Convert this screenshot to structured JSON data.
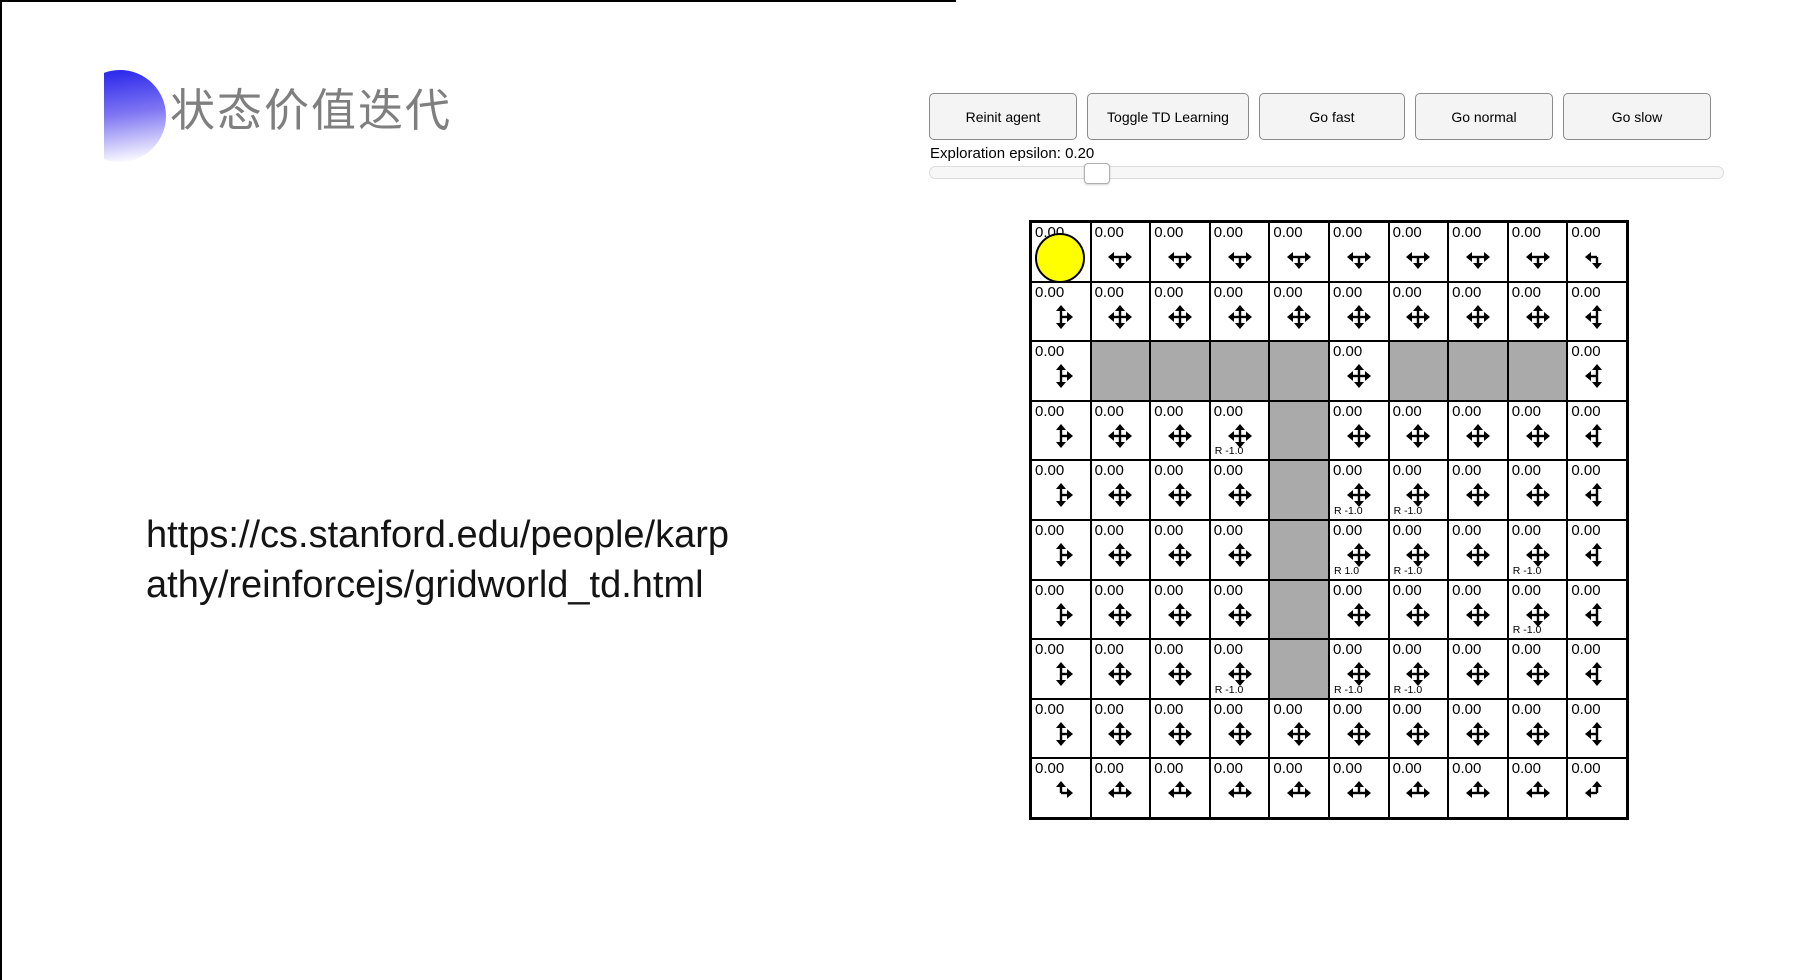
{
  "slide": {
    "title": "状态价值迭代",
    "title_color": "#7f7f7f",
    "accent_color": "#2f2ceb",
    "url": {
      "line1": "https://cs.stanford.edu/people/karp",
      "line2": "athy/reinforcejs/gridworld_td.html"
    }
  },
  "demo": {
    "buttons": [
      {
        "label": "Reinit agent"
      },
      {
        "label": "Toggle TD Learning"
      },
      {
        "label": "Go fast"
      },
      {
        "label": "Go normal"
      },
      {
        "label": "Go slow"
      }
    ],
    "epsilon": {
      "label": "Exploration epsilon: 0.20",
      "value": 0.2
    },
    "slider": {
      "percent": 20
    },
    "grid": {
      "rows_count": 10,
      "cols_count": 10,
      "wall_color": "#aaaaaa",
      "agent_color": "#ffff00",
      "agent_position": {
        "row": 0,
        "col": 0
      },
      "rows": [
        [
          {
            "v": "0.00",
            "a": true
          },
          {
            "v": "0.00",
            "d": "lrd"
          },
          {
            "v": "0.00",
            "d": "lrd"
          },
          {
            "v": "0.00",
            "d": "lrd"
          },
          {
            "v": "0.00",
            "d": "lrd"
          },
          {
            "v": "0.00",
            "d": "lrd"
          },
          {
            "v": "0.00",
            "d": "lrd"
          },
          {
            "v": "0.00",
            "d": "lrd"
          },
          {
            "v": "0.00",
            "d": "lrd"
          },
          {
            "v": "0.00",
            "d": "ld"
          }
        ],
        [
          {
            "v": "0.00",
            "d": "udr"
          },
          {
            "v": "0.00",
            "d": "udlr"
          },
          {
            "v": "0.00",
            "d": "udlr"
          },
          {
            "v": "0.00",
            "d": "udlr"
          },
          {
            "v": "0.00",
            "d": "udlr"
          },
          {
            "v": "0.00",
            "d": "udlr"
          },
          {
            "v": "0.00",
            "d": "udlr"
          },
          {
            "v": "0.00",
            "d": "udlr"
          },
          {
            "v": "0.00",
            "d": "udlr"
          },
          {
            "v": "0.00",
            "d": "udl"
          }
        ],
        [
          {
            "v": "0.00",
            "d": "udr"
          },
          {
            "w": true
          },
          {
            "w": true
          },
          {
            "w": true
          },
          {
            "w": true
          },
          {
            "v": "0.00",
            "d": "udlr"
          },
          {
            "w": true
          },
          {
            "w": true
          },
          {
            "w": true
          },
          {
            "v": "0.00",
            "d": "udl"
          }
        ],
        [
          {
            "v": "0.00",
            "d": "udr"
          },
          {
            "v": "0.00",
            "d": "udlr"
          },
          {
            "v": "0.00",
            "d": "udlr"
          },
          {
            "v": "0.00",
            "d": "udlr",
            "r": "R -1.0"
          },
          {
            "w": true
          },
          {
            "v": "0.00",
            "d": "udlr"
          },
          {
            "v": "0.00",
            "d": "udlr"
          },
          {
            "v": "0.00",
            "d": "udlr"
          },
          {
            "v": "0.00",
            "d": "udlr"
          },
          {
            "v": "0.00",
            "d": "udl"
          }
        ],
        [
          {
            "v": "0.00",
            "d": "udr"
          },
          {
            "v": "0.00",
            "d": "udlr"
          },
          {
            "v": "0.00",
            "d": "udlr"
          },
          {
            "v": "0.00",
            "d": "udlr"
          },
          {
            "w": true
          },
          {
            "v": "0.00",
            "d": "udlr",
            "r": "R -1.0"
          },
          {
            "v": "0.00",
            "d": "udlr",
            "r": "R -1.0"
          },
          {
            "v": "0.00",
            "d": "udlr"
          },
          {
            "v": "0.00",
            "d": "udlr"
          },
          {
            "v": "0.00",
            "d": "udl"
          }
        ],
        [
          {
            "v": "0.00",
            "d": "udr"
          },
          {
            "v": "0.00",
            "d": "udlr"
          },
          {
            "v": "0.00",
            "d": "udlr"
          },
          {
            "v": "0.00",
            "d": "udlr"
          },
          {
            "w": true
          },
          {
            "v": "0.00",
            "d": "udlr",
            "r": "R 1.0"
          },
          {
            "v": "0.00",
            "d": "udlr",
            "r": "R -1.0"
          },
          {
            "v": "0.00",
            "d": "udlr"
          },
          {
            "v": "0.00",
            "d": "udlr",
            "r": "R -1.0"
          },
          {
            "v": "0.00",
            "d": "udl"
          }
        ],
        [
          {
            "v": "0.00",
            "d": "udr"
          },
          {
            "v": "0.00",
            "d": "udlr"
          },
          {
            "v": "0.00",
            "d": "udlr"
          },
          {
            "v": "0.00",
            "d": "udlr"
          },
          {
            "w": true
          },
          {
            "v": "0.00",
            "d": "udlr"
          },
          {
            "v": "0.00",
            "d": "udlr"
          },
          {
            "v": "0.00",
            "d": "udlr"
          },
          {
            "v": "0.00",
            "d": "udlr",
            "r": "R -1.0"
          },
          {
            "v": "0.00",
            "d": "udl"
          }
        ],
        [
          {
            "v": "0.00",
            "d": "udr"
          },
          {
            "v": "0.00",
            "d": "udlr"
          },
          {
            "v": "0.00",
            "d": "udlr"
          },
          {
            "v": "0.00",
            "d": "udlr",
            "r": "R -1.0"
          },
          {
            "w": true
          },
          {
            "v": "0.00",
            "d": "udlr",
            "r": "R -1.0"
          },
          {
            "v": "0.00",
            "d": "udlr",
            "r": "R -1.0"
          },
          {
            "v": "0.00",
            "d": "udlr"
          },
          {
            "v": "0.00",
            "d": "udlr"
          },
          {
            "v": "0.00",
            "d": "udl"
          }
        ],
        [
          {
            "v": "0.00",
            "d": "udr"
          },
          {
            "v": "0.00",
            "d": "udlr"
          },
          {
            "v": "0.00",
            "d": "udlr"
          },
          {
            "v": "0.00",
            "d": "udlr"
          },
          {
            "v": "0.00",
            "d": "udlr"
          },
          {
            "v": "0.00",
            "d": "udlr"
          },
          {
            "v": "0.00",
            "d": "udlr"
          },
          {
            "v": "0.00",
            "d": "udlr"
          },
          {
            "v": "0.00",
            "d": "udlr"
          },
          {
            "v": "0.00",
            "d": "udl"
          }
        ],
        [
          {
            "v": "0.00",
            "d": "ur"
          },
          {
            "v": "0.00",
            "d": "lur"
          },
          {
            "v": "0.00",
            "d": "lur"
          },
          {
            "v": "0.00",
            "d": "lur"
          },
          {
            "v": "0.00",
            "d": "lur"
          },
          {
            "v": "0.00",
            "d": "lur"
          },
          {
            "v": "0.00",
            "d": "lur"
          },
          {
            "v": "0.00",
            "d": "lur"
          },
          {
            "v": "0.00",
            "d": "lur"
          },
          {
            "v": "0.00",
            "d": "ul"
          }
        ]
      ]
    }
  }
}
